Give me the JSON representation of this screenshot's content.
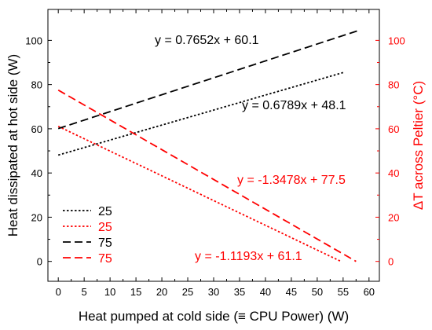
{
  "chart_data": {
    "type": "line",
    "xlabel": "Heat pumped at cold side (≡ CPU Power) (W)",
    "ylabel_left": "Heat dissipated at hot side (W)",
    "ylabel_right": "ΔT across Peltier (°C)",
    "xlim": [
      -2,
      62
    ],
    "ylim_left": [
      -9,
      114
    ],
    "ylim_right": [
      -9,
      114
    ],
    "x_ticks": [
      0,
      5,
      10,
      15,
      20,
      25,
      30,
      35,
      40,
      45,
      50,
      55,
      60
    ],
    "y_left_ticks": [
      0,
      20,
      40,
      60,
      80,
      100
    ],
    "y_right_ticks": [
      0,
      20,
      40,
      60,
      80,
      100
    ],
    "colors": {
      "black": "#000000",
      "red": "#ff0000"
    },
    "series": [
      {
        "name": "25",
        "axis": "left",
        "color": "#000000",
        "dash": "dotted",
        "slope": 0.6789,
        "intercept": 48.1,
        "x_range": [
          0,
          55
        ]
      },
      {
        "name": "25",
        "axis": "right",
        "color": "#ff0000",
        "dash": "dotted",
        "slope": -1.1193,
        "intercept": 61.1,
        "x_range": [
          0,
          54.6
        ]
      },
      {
        "name": "75",
        "axis": "left",
        "color": "#000000",
        "dash": "dashed",
        "slope": 0.7652,
        "intercept": 60.1,
        "x_range": [
          0,
          58
        ]
      },
      {
        "name": "75",
        "axis": "right",
        "color": "#ff0000",
        "dash": "dashed",
        "slope": -1.3478,
        "intercept": 77.5,
        "x_range": [
          0,
          57.5
        ]
      }
    ],
    "annotations": [
      {
        "text": "y = 0.7652x + 60.1",
        "color": "#000000"
      },
      {
        "text": "y = 0.6789x + 48.1",
        "color": "#000000"
      },
      {
        "text": "y = -1.3478x + 77.5",
        "color": "#ff0000"
      },
      {
        "text": "y = -1.1193x + 61.1",
        "color": "#ff0000"
      }
    ],
    "legend": {
      "placement": "bottom-left",
      "entries": [
        {
          "label": "25",
          "color": "#000000",
          "dash": "dotted"
        },
        {
          "label": "25",
          "color": "#ff0000",
          "dash": "dotted"
        },
        {
          "label": "75",
          "color": "#000000",
          "dash": "dashed"
        },
        {
          "label": "75",
          "color": "#ff0000",
          "dash": "dashed"
        }
      ]
    },
    "grid": false
  }
}
